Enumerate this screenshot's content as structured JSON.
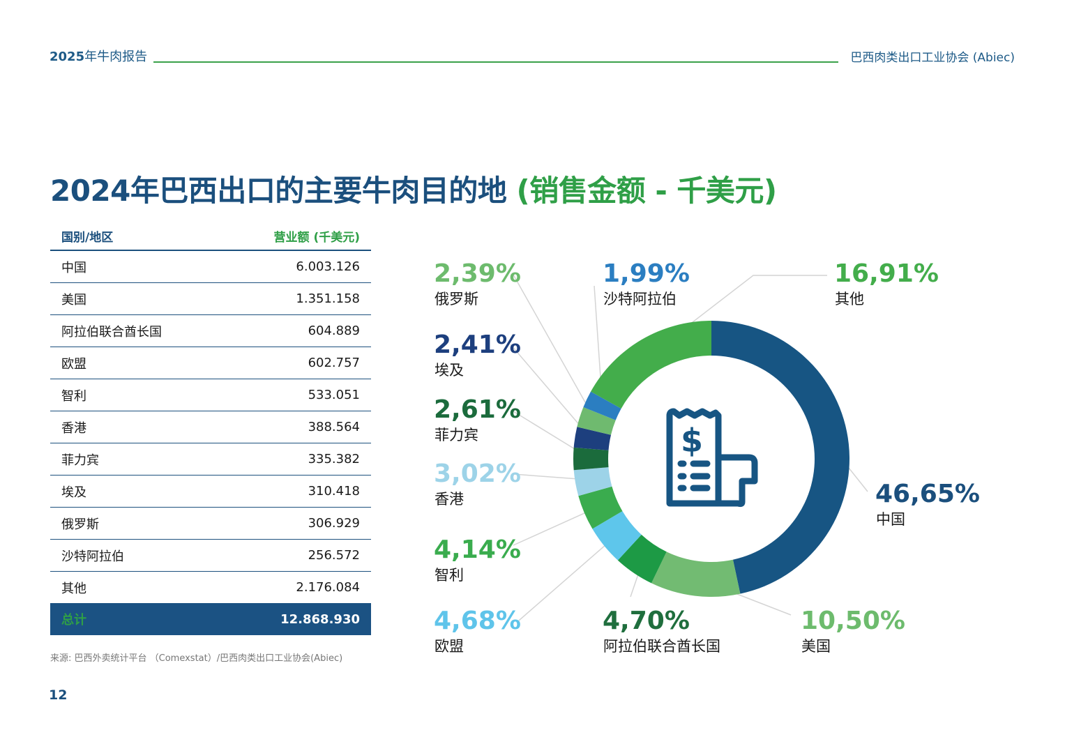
{
  "header": {
    "report_year": "2025",
    "report_title": "年牛肉报告",
    "org": "巴西肉类出口工业协会 (Abiec)"
  },
  "title": {
    "main": "2024年巴西出口的主要牛肉目的地",
    "sub": "(销售金额 - 千美元)"
  },
  "table": {
    "col_country": "国别/地区",
    "col_value": "营业额 (千美元)",
    "rows": [
      {
        "country": "中国",
        "value": "6.003.126"
      },
      {
        "country": "美国",
        "value": "1.351.158"
      },
      {
        "country": "阿拉伯联合酋长国",
        "value": "604.889"
      },
      {
        "country": "欧盟",
        "value": "602.757"
      },
      {
        "country": "智利",
        "value": "533.051"
      },
      {
        "country": "香港",
        "value": "388.564"
      },
      {
        "country": "菲力宾",
        "value": "335.382"
      },
      {
        "country": "埃及",
        "value": "310.418"
      },
      {
        "country": "俄罗斯",
        "value": "306.929"
      },
      {
        "country": "沙特阿拉伯",
        "value": "256.572"
      },
      {
        "country": "其他",
        "value": "2.176.084"
      }
    ],
    "total_label": "总计",
    "total_value": "12.868.930"
  },
  "source": "来源: 巴西外卖统计平台 （Comexstat）/巴西肉类出口工业协会(Abiec)",
  "page_number": "12",
  "chart_data": {
    "type": "pie",
    "variant": "donut",
    "title": "2024年巴西出口的主要牛肉目的地 (销售金额 - 千美元)",
    "slices": [
      {
        "name": "中国",
        "value": 46.65,
        "label": "46,65%",
        "color": "#175583"
      },
      {
        "name": "美国",
        "value": 10.5,
        "label": "10,50%",
        "color": "#72bb72"
      },
      {
        "name": "阿拉伯联合酋长国",
        "value": 4.7,
        "label": "4,70%",
        "color": "#1d9a45"
      },
      {
        "name": "欧盟",
        "value": 4.68,
        "label": "4,68%",
        "color": "#5ec6eb"
      },
      {
        "name": "智利",
        "value": 4.14,
        "label": "4,14%",
        "color": "#3aac4e"
      },
      {
        "name": "香港",
        "value": 3.02,
        "label": "3,02%",
        "color": "#9dd3e8"
      },
      {
        "name": "菲力宾",
        "value": 2.61,
        "label": "2,61%",
        "color": "#1b6b3c"
      },
      {
        "name": "埃及",
        "value": 2.41,
        "label": "2,41%",
        "color": "#1d3f7e"
      },
      {
        "name": "俄罗斯",
        "value": 2.39,
        "label": "2,39%",
        "color": "#6fba6f"
      },
      {
        "name": "沙特阿拉伯",
        "value": 1.99,
        "label": "1,99%",
        "color": "#2b7ec1"
      },
      {
        "name": "其他",
        "value": 16.91,
        "label": "16,91%",
        "color": "#43ad4b"
      }
    ],
    "label_colors": {
      "中国": "#1b4f7d",
      "美国": "#6dbb6d",
      "阿拉伯联合酋长国": "#1f6e3d",
      "欧盟": "#5fc4ea",
      "智利": "#3aac4e",
      "香港": "#9dd3e8",
      "菲力宾": "#1b6b3c",
      "埃及": "#1d3f7e",
      "俄罗斯": "#6dbb6d",
      "沙特阿拉伯": "#2b7ec1",
      "其他": "#43ad4b"
    },
    "center_icon": "receipt-dollar-icon"
  }
}
